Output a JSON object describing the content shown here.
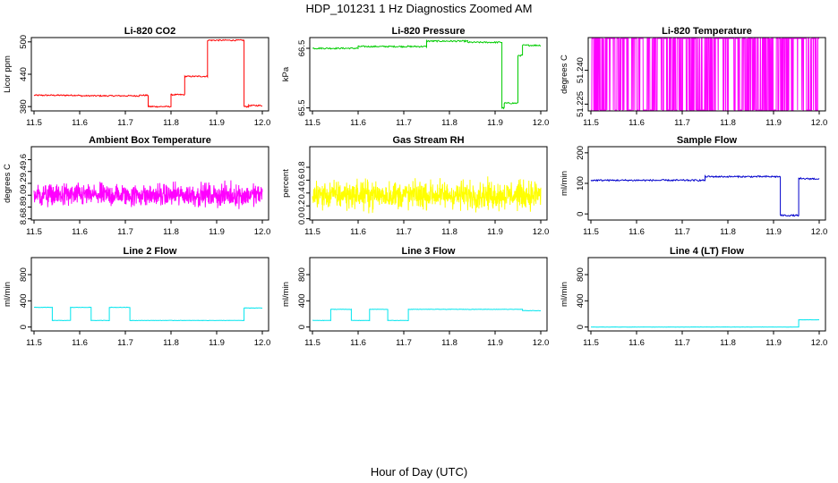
{
  "figure": {
    "title": "HDP_101231  1 Hz Diagnostics Zoomed AM",
    "xlabel": "Hour of Day (UTC)"
  },
  "chart_data": [
    {
      "type": "line",
      "title": "Li-820 CO2",
      "ylabel": "Licor ppm",
      "color": "#ff0000",
      "xlim": [
        11.5,
        12.0
      ],
      "xticks": [
        "11.5",
        "11.6",
        "11.7",
        "11.8",
        "11.9",
        "12.0"
      ],
      "ylim": [
        372,
        508
      ],
      "yticks": [
        "380",
        "440",
        "500"
      ],
      "segments": [
        [
          11.5,
          11.6,
          401
        ],
        [
          11.6,
          11.73,
          400
        ],
        [
          11.73,
          11.75,
          401
        ],
        [
          11.75,
          11.76,
          380
        ],
        [
          11.76,
          11.8,
          380
        ],
        [
          11.8,
          11.83,
          402
        ],
        [
          11.83,
          11.88,
          436
        ],
        [
          11.88,
          11.96,
          503
        ],
        [
          11.96,
          11.97,
          380
        ],
        [
          11.97,
          12.0,
          382
        ]
      ],
      "noise": 1.2
    },
    {
      "type": "line",
      "title": "Li-820 Pressure",
      "ylabel": "kPa",
      "color": "#00cc00",
      "xlim": [
        11.5,
        12.0
      ],
      "xticks": [
        "11.5",
        "11.6",
        "11.7",
        "11.8",
        "11.9",
        "12.0"
      ],
      "ylim": [
        65.45,
        66.68
      ],
      "yticks": [
        "65.5",
        "66.5"
      ],
      "segments": [
        [
          11.5,
          11.6,
          66.5
        ],
        [
          11.6,
          11.75,
          66.53
        ],
        [
          11.75,
          11.84,
          66.62
        ],
        [
          11.84,
          11.915,
          66.6
        ],
        [
          11.915,
          11.92,
          65.5
        ],
        [
          11.92,
          11.95,
          65.58
        ],
        [
          11.95,
          11.96,
          66.38
        ],
        [
          11.96,
          12.0,
          66.55
        ]
      ],
      "noise": 0.012
    },
    {
      "type": "line",
      "title": "Li-820 Temperature",
      "ylabel": "degrees C",
      "color": "#ff00ff",
      "xlim": [
        11.5,
        12.0
      ],
      "xticks": [
        "11.5",
        "11.6",
        "11.7",
        "11.8",
        "11.9",
        "12.0"
      ],
      "ylim": [
        51.222,
        51.2545
      ],
      "yticks": [
        "51.225",
        "51.240"
      ],
      "mode": "toggle",
      "low": 51.222,
      "high": 51.2545
    },
    {
      "type": "line",
      "title": "Ambient Box Temperature",
      "ylabel": "degrees C",
      "color": "#ff00ff",
      "xlim": [
        11.5,
        12.0
      ],
      "xticks": [
        "11.5",
        "11.6",
        "11.7",
        "11.8",
        "11.9",
        "12.0"
      ],
      "ylim": [
        8.58,
        9.82
      ],
      "yticks": [
        "8.6",
        "8.8",
        "9.0",
        "9.2",
        "9.4",
        "9.6"
      ],
      "mode": "noise",
      "center": 9.0,
      "spread": 0.28
    },
    {
      "type": "line",
      "title": "Gas Stream RH",
      "ylabel": "percent",
      "color": "#ffff00",
      "xlim": [
        11.5,
        12.0
      ],
      "xticks": [
        "11.5",
        "11.6",
        "11.7",
        "11.8",
        "11.9",
        "12.0"
      ],
      "ylim": [
        -0.02,
        1.12
      ],
      "yticks": [
        "0.0",
        "0.2",
        "0.4",
        "0.6",
        "0.8"
      ],
      "mode": "noise",
      "center": 0.37,
      "spread": 0.32
    },
    {
      "type": "line",
      "title": "Sample Flow",
      "ylabel": "ml/min",
      "color": "#0000cc",
      "xlim": [
        11.5,
        12.0
      ],
      "xticks": [
        "11.5",
        "11.6",
        "11.7",
        "11.8",
        "11.9",
        "12.0"
      ],
      "ylim": [
        -20,
        220
      ],
      "yticks": [
        "0",
        "100",
        "200"
      ],
      "segments": [
        [
          11.5,
          11.6,
          110
        ],
        [
          11.6,
          11.75,
          110
        ],
        [
          11.75,
          11.76,
          122
        ],
        [
          11.76,
          11.915,
          122
        ],
        [
          11.915,
          11.92,
          -5
        ],
        [
          11.92,
          11.955,
          -5
        ],
        [
          11.955,
          11.96,
          115
        ],
        [
          11.96,
          12.0,
          115
        ]
      ],
      "noise": 2.5
    },
    {
      "type": "line",
      "title": "Line 2 Flow",
      "ylabel": "ml/min",
      "color": "#00e5ee",
      "xlim": [
        11.5,
        12.0
      ],
      "xticks": [
        "11.5",
        "11.6",
        "11.7",
        "11.8",
        "11.9",
        "12.0"
      ],
      "ylim": [
        -60,
        1060
      ],
      "yticks": [
        "0",
        "400",
        "800"
      ],
      "segments": [
        [
          11.5,
          11.54,
          300
        ],
        [
          11.54,
          11.58,
          100
        ],
        [
          11.58,
          11.625,
          300
        ],
        [
          11.625,
          11.665,
          100
        ],
        [
          11.665,
          11.71,
          300
        ],
        [
          11.71,
          11.96,
          100
        ],
        [
          11.96,
          12.0,
          290
        ]
      ],
      "noise": 3
    },
    {
      "type": "line",
      "title": "Line 3 Flow",
      "ylabel": "ml/min",
      "color": "#00e5ee",
      "xlim": [
        11.5,
        12.0
      ],
      "xticks": [
        "11.5",
        "11.6",
        "11.7",
        "11.8",
        "11.9",
        "12.0"
      ],
      "ylim": [
        -60,
        1060
      ],
      "yticks": [
        "0",
        "400",
        "800"
      ],
      "segments": [
        [
          11.5,
          11.54,
          100
        ],
        [
          11.54,
          11.585,
          270
        ],
        [
          11.585,
          11.625,
          100
        ],
        [
          11.625,
          11.665,
          270
        ],
        [
          11.665,
          11.71,
          100
        ],
        [
          11.71,
          11.96,
          270
        ],
        [
          11.96,
          12.0,
          250
        ]
      ],
      "noise": 3
    },
    {
      "type": "line",
      "title": "Line 4 (LT) Flow",
      "ylabel": "ml/min",
      "color": "#00e5ee",
      "xlim": [
        11.5,
        12.0
      ],
      "xticks": [
        "11.5",
        "11.6",
        "11.7",
        "11.8",
        "11.9",
        "12.0"
      ],
      "ylim": [
        -60,
        1060
      ],
      "yticks": [
        "0",
        "400",
        "800"
      ],
      "segments": [
        [
          11.5,
          11.955,
          0
        ],
        [
          11.955,
          11.96,
          110
        ],
        [
          11.96,
          12.0,
          110
        ]
      ],
      "noise": 1
    }
  ]
}
